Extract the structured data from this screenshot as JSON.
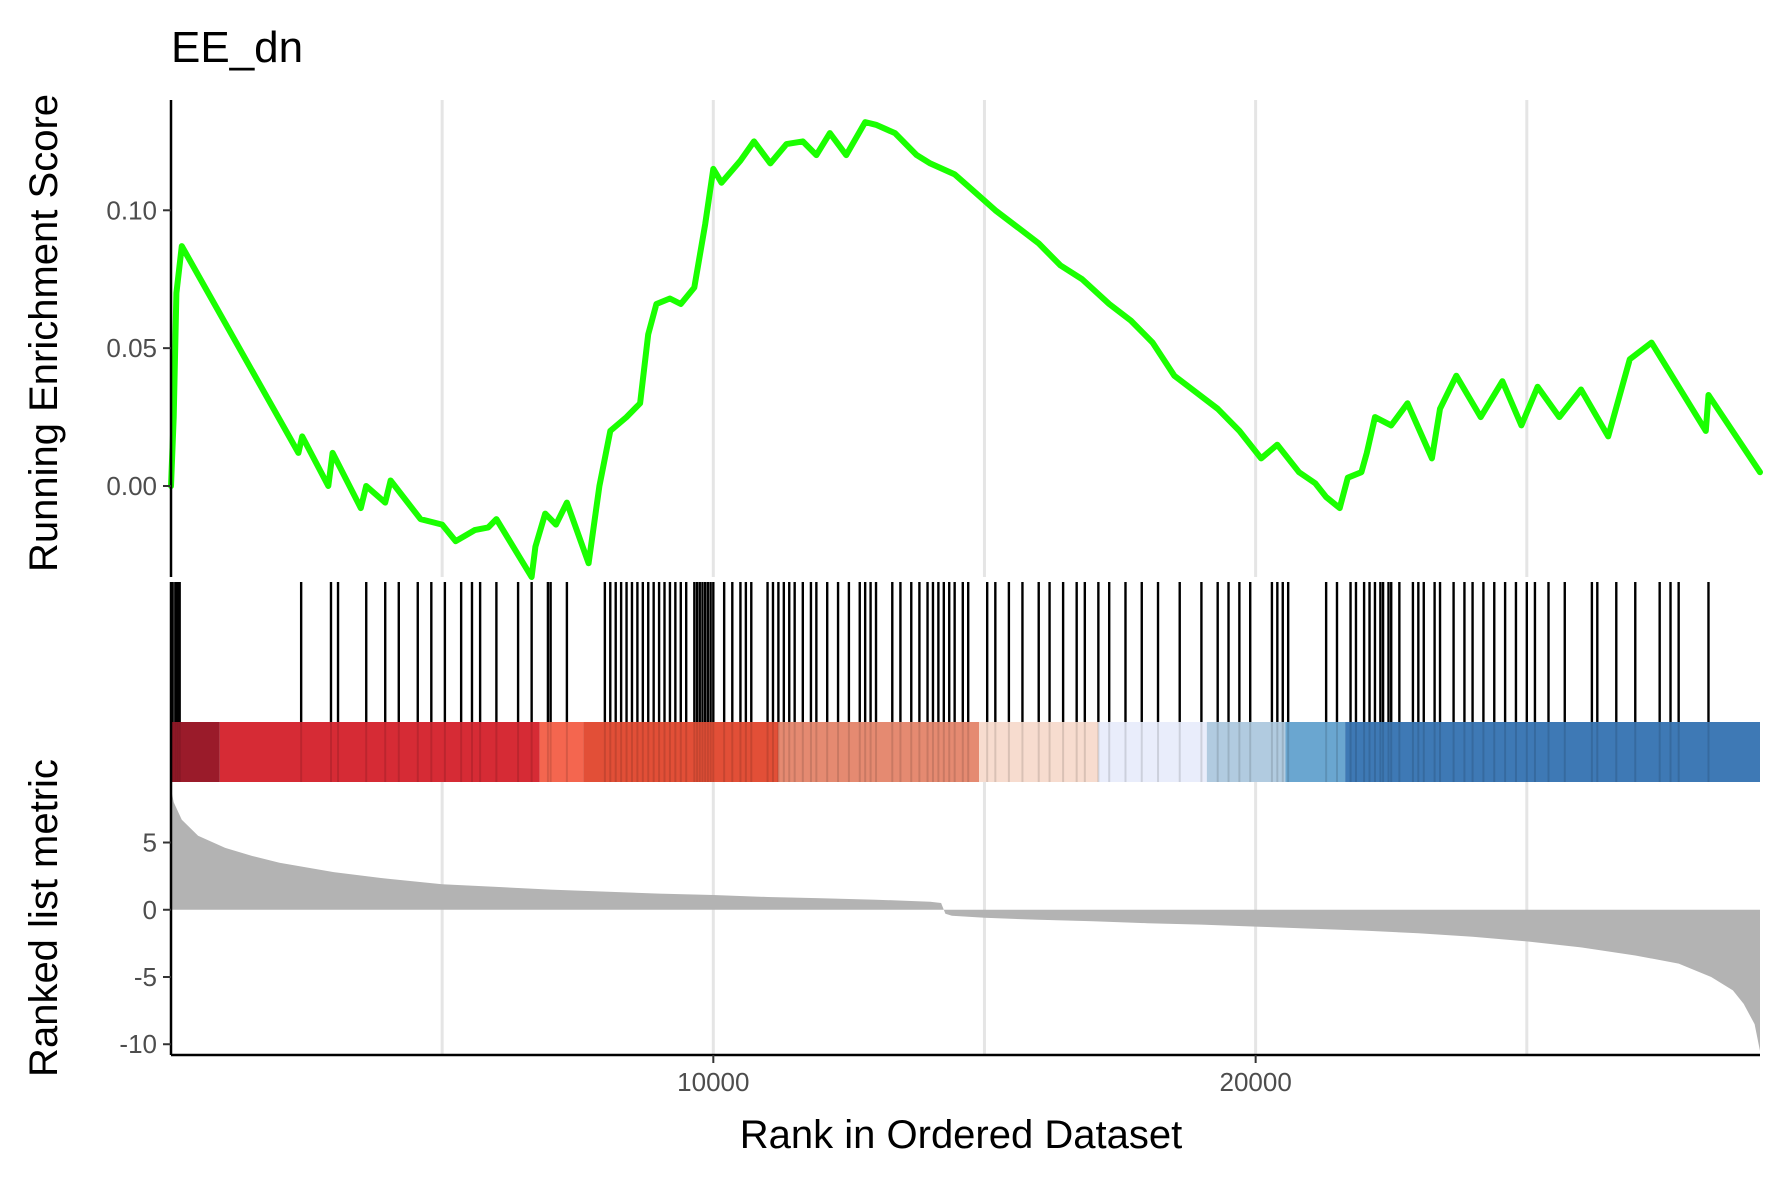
{
  "chart_data": {
    "type": "line",
    "title": "EE_dn",
    "xlabel": "Rank in Ordered Dataset",
    "xlim": [
      0,
      29300
    ],
    "x_ticks": [
      "10000",
      "20000"
    ],
    "x_tick_values": [
      10000,
      20000
    ],
    "x_gridlines": [
      5000,
      10000,
      15000,
      20000,
      25000
    ],
    "grid": "vertical only",
    "colors": {
      "curve": "#1aff00",
      "hits": "#000000",
      "metric_fill": "#b3b3b3",
      "axis": "#000000",
      "grid": "#e5e5e5"
    },
    "enrichment": {
      "ylabel": "Running Enrichment Score",
      "ylim": [
        -0.033,
        0.14
      ],
      "y_ticks": [
        "0.00",
        "0.05",
        "0.10"
      ],
      "y_tick_values": [
        0.0,
        0.05,
        0.1
      ],
      "points": [
        [
          0,
          0.0
        ],
        [
          50,
          0.025
        ],
        [
          100,
          0.07
        ],
        [
          200,
          0.087
        ],
        [
          2350,
          0.012
        ],
        [
          2420,
          0.018
        ],
        [
          2900,
          0.0
        ],
        [
          2980,
          0.012
        ],
        [
          3500,
          -0.008
        ],
        [
          3600,
          0.0
        ],
        [
          3950,
          -0.006
        ],
        [
          4050,
          0.002
        ],
        [
          4600,
          -0.012
        ],
        [
          5000,
          -0.014
        ],
        [
          5250,
          -0.02
        ],
        [
          5600,
          -0.016
        ],
        [
          5850,
          -0.015
        ],
        [
          6000,
          -0.012
        ],
        [
          6650,
          -0.033
        ],
        [
          6720,
          -0.022
        ],
        [
          6900,
          -0.01
        ],
        [
          7100,
          -0.014
        ],
        [
          7300,
          -0.006
        ],
        [
          7700,
          -0.028
        ],
        [
          7900,
          0.0
        ],
        [
          8100,
          0.02
        ],
        [
          8400,
          0.025
        ],
        [
          8650,
          0.03
        ],
        [
          8800,
          0.055
        ],
        [
          8950,
          0.066
        ],
        [
          9200,
          0.068
        ],
        [
          9400,
          0.066
        ],
        [
          9650,
          0.072
        ],
        [
          9850,
          0.095
        ],
        [
          10000,
          0.115
        ],
        [
          10150,
          0.11
        ],
        [
          10500,
          0.118
        ],
        [
          10750,
          0.125
        ],
        [
          11050,
          0.117
        ],
        [
          11350,
          0.124
        ],
        [
          11650,
          0.125
        ],
        [
          11900,
          0.12
        ],
        [
          12150,
          0.128
        ],
        [
          12450,
          0.12
        ],
        [
          12800,
          0.132
        ],
        [
          13000,
          0.131
        ],
        [
          13350,
          0.128
        ],
        [
          13750,
          0.12
        ],
        [
          14000,
          0.117
        ],
        [
          14450,
          0.113
        ],
        [
          14800,
          0.107
        ],
        [
          15200,
          0.1
        ],
        [
          15600,
          0.094
        ],
        [
          16000,
          0.088
        ],
        [
          16400,
          0.08
        ],
        [
          16800,
          0.075
        ],
        [
          17300,
          0.066
        ],
        [
          17700,
          0.06
        ],
        [
          18100,
          0.052
        ],
        [
          18500,
          0.04
        ],
        [
          18900,
          0.034
        ],
        [
          19300,
          0.028
        ],
        [
          19700,
          0.02
        ],
        [
          20100,
          0.01
        ],
        [
          20400,
          0.015
        ],
        [
          20800,
          0.005
        ],
        [
          21100,
          0.001
        ],
        [
          21300,
          -0.004
        ],
        [
          21550,
          -0.008
        ],
        [
          21700,
          0.003
        ],
        [
          21950,
          0.005
        ],
        [
          22050,
          0.012
        ],
        [
          22200,
          0.025
        ],
        [
          22500,
          0.022
        ],
        [
          22800,
          0.03
        ],
        [
          23250,
          0.01
        ],
        [
          23400,
          0.028
        ],
        [
          23700,
          0.04
        ],
        [
          24150,
          0.025
        ],
        [
          24550,
          0.038
        ],
        [
          24900,
          0.022
        ],
        [
          25200,
          0.036
        ],
        [
          25600,
          0.025
        ],
        [
          26000,
          0.035
        ],
        [
          26500,
          0.018
        ],
        [
          26900,
          0.046
        ],
        [
          27300,
          0.052
        ],
        [
          28300,
          0.02
        ],
        [
          28350,
          0.033
        ],
        [
          29300,
          0.005
        ]
      ]
    },
    "hits": [
      30,
      80,
      120,
      160,
      2400,
      2950,
      3080,
      3600,
      3950,
      4200,
      4550,
      4800,
      5050,
      5350,
      5550,
      5700,
      6000,
      6400,
      6650,
      6950,
      7000,
      7300,
      8000,
      8100,
      8200,
      8300,
      8400,
      8500,
      8600,
      8700,
      8800,
      8900,
      9000,
      9100,
      9200,
      9300,
      9400,
      9500,
      9650,
      9700,
      9750,
      9800,
      9850,
      9900,
      9950,
      10000,
      10200,
      10350,
      10500,
      10600,
      10700,
      11000,
      11100,
      11200,
      11300,
      11400,
      11500,
      11650,
      11800,
      11900,
      12100,
      12300,
      12500,
      12700,
      12800,
      12900,
      13000,
      13300,
      13450,
      13650,
      13800,
      13950,
      14050,
      14150,
      14250,
      14350,
      14450,
      14600,
      14700,
      15050,
      15200,
      15450,
      15700,
      16000,
      16200,
      16450,
      16700,
      16850,
      17100,
      17300,
      17600,
      17900,
      18200,
      18600,
      19000,
      19300,
      19500,
      19700,
      19900,
      20300,
      20400,
      20500,
      20600,
      21300,
      21500,
      21750,
      21850,
      22000,
      22100,
      22200,
      22300,
      22350,
      22450,
      22500,
      22650,
      22900,
      23000,
      23100,
      23300,
      23400,
      23650,
      23850,
      24000,
      24200,
      24400,
      24600,
      24800,
      25000,
      25150,
      25400,
      25700,
      26200,
      26300,
      26650,
      27000,
      27450,
      27650,
      27800,
      28350
    ],
    "ranked_metric": {
      "ylabel": "Ranked list metric",
      "ylim": [
        -10.8,
        9.5
      ],
      "y_ticks": [
        "5",
        "0",
        "-5",
        "-10"
      ],
      "y_tick_values": [
        5,
        0,
        -5,
        -10
      ],
      "points": [
        [
          0,
          9.0
        ],
        [
          50,
          8.0
        ],
        [
          200,
          6.7
        ],
        [
          500,
          5.5
        ],
        [
          1000,
          4.6
        ],
        [
          1500,
          4.0
        ],
        [
          2000,
          3.5
        ],
        [
          3000,
          2.8
        ],
        [
          4000,
          2.3
        ],
        [
          5000,
          1.9
        ],
        [
          6000,
          1.7
        ],
        [
          7000,
          1.5
        ],
        [
          8000,
          1.35
        ],
        [
          9000,
          1.2
        ],
        [
          10000,
          1.1
        ],
        [
          11000,
          0.95
        ],
        [
          12000,
          0.85
        ],
        [
          13000,
          0.75
        ],
        [
          14000,
          0.6
        ],
        [
          14200,
          0.5
        ],
        [
          14280,
          -0.3
        ],
        [
          14400,
          -0.45
        ],
        [
          15000,
          -0.6
        ],
        [
          16000,
          -0.75
        ],
        [
          17000,
          -0.85
        ],
        [
          18000,
          -1.0
        ],
        [
          19000,
          -1.1
        ],
        [
          20000,
          -1.25
        ],
        [
          21000,
          -1.4
        ],
        [
          22000,
          -1.55
        ],
        [
          23000,
          -1.75
        ],
        [
          24000,
          -2.0
        ],
        [
          25000,
          -2.35
        ],
        [
          26000,
          -2.8
        ],
        [
          27000,
          -3.4
        ],
        [
          27800,
          -4.0
        ],
        [
          28400,
          -5.0
        ],
        [
          28800,
          -6.0
        ],
        [
          29000,
          -7.0
        ],
        [
          29200,
          -8.5
        ],
        [
          29300,
          -10.5
        ]
      ]
    },
    "color_bar": [
      {
        "from": 0,
        "to": 900,
        "color": "#9a1b2a"
      },
      {
        "from": 900,
        "to": 6800,
        "color": "#d62b35"
      },
      {
        "from": 6800,
        "to": 7600,
        "color": "#f4664f"
      },
      {
        "from": 7600,
        "to": 11200,
        "color": "#e24f37"
      },
      {
        "from": 11200,
        "to": 14900,
        "color": "#e58a71"
      },
      {
        "from": 14900,
        "to": 17100,
        "color": "#f7dccf"
      },
      {
        "from": 17100,
        "to": 19100,
        "color": "#e9edfb"
      },
      {
        "from": 19100,
        "to": 20550,
        "color": "#b1cbe0"
      },
      {
        "from": 20550,
        "to": 21650,
        "color": "#6aa6d0"
      },
      {
        "from": 21650,
        "to": 29300,
        "color": "#3e79b5"
      }
    ]
  }
}
